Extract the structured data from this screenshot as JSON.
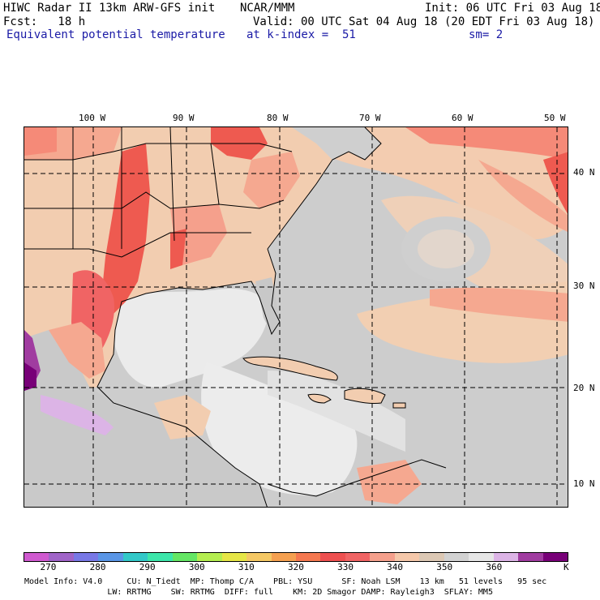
{
  "header": {
    "line1_left": "HIWC Radar II 13km ARW-GFS init",
    "line1_mid": "NCAR/MMM",
    "line1_right": "Init: 06 UTC Fri 03 Aug 18",
    "line2_left": "Fcst:   18 h",
    "line2_right": "Valid: 00 UTC Sat 04 Aug 18 (20 EDT Fri 03 Aug 18)",
    "line3_left": "Equivalent potential temperature",
    "line3_mid": "at k-index =  51",
    "line3_right": "sm= 2"
  },
  "map": {
    "lon_labels": [
      "100 W",
      "90 W",
      "80 W",
      "70 W",
      "60 W",
      "50 W"
    ],
    "lat_labels": [
      "40 N",
      "30 N",
      "20 N",
      "10 N"
    ]
  },
  "colorbar": {
    "colors": [
      "#d05ad0",
      "#a064c8",
      "#7878e6",
      "#5a96e6",
      "#32c8c8",
      "#3ce6aa",
      "#64e664",
      "#b4ee50",
      "#e6e646",
      "#f5c864",
      "#f5a050",
      "#f57850",
      "#ee5050",
      "#f06464",
      "#f5a08c",
      "#f5c8aa",
      "#dcc8b4",
      "#d2d2d2",
      "#e6e6e6",
      "#dcb4e6",
      "#a03ca0",
      "#780078"
    ],
    "tick_labels": [
      "270",
      "280",
      "290",
      "300",
      "310",
      "320",
      "330",
      "340",
      "350",
      "360",
      "K"
    ]
  },
  "footer": {
    "line1": "Model Info: V4.0     CU: N_Tiedt  MP: Thomp C/A    PBL: YSU      SF: Noah LSM    13 km   51 levels   95 sec",
    "line2": "                 LW: RRTMG    SW: RRTMG  DIFF: full    KM: 2D Smagor DAMP: Rayleigh3  SFLAY: MM5"
  }
}
